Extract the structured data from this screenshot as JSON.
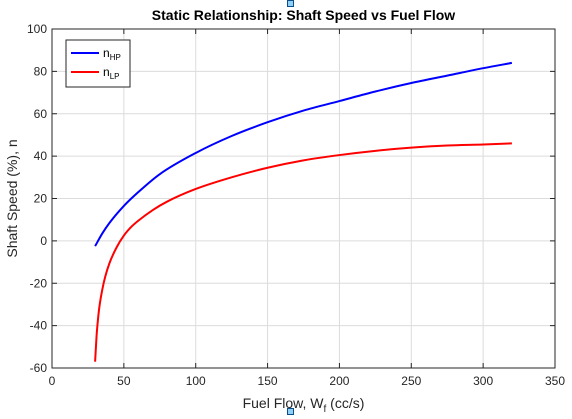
{
  "chart_data": {
    "type": "line",
    "title": "Static Relationship: Shaft Speed vs Fuel Flow",
    "xlabel": "Fuel Flow, W",
    "xlabel_subscript": "f",
    "xlabel_suffix": " (cc/s)",
    "ylabel": "Shaft Speed (%), n",
    "xlim": [
      0,
      350
    ],
    "ylim": [
      -60,
      100
    ],
    "xticks": [
      0,
      50,
      100,
      150,
      200,
      250,
      300,
      350
    ],
    "yticks": [
      -60,
      -40,
      -20,
      0,
      20,
      40,
      60,
      80,
      100
    ],
    "grid": true,
    "legend_location": "top-left",
    "series": [
      {
        "name": "n",
        "name_subscript": "HP",
        "color": "#0000ff",
        "x": [
          30,
          35,
          40,
          50,
          60,
          75,
          100,
          125,
          150,
          175,
          200,
          225,
          250,
          275,
          300,
          320
        ],
        "y": [
          -2.5,
          3.5,
          8.5,
          16.5,
          23,
          31.5,
          41.5,
          49.5,
          56,
          61.5,
          66,
          70.5,
          74.5,
          78,
          81.5,
          84
        ]
      },
      {
        "name": "n",
        "name_subscript": "LP",
        "color": "#ff0000",
        "x": [
          30,
          31,
          32,
          33,
          35,
          37,
          40,
          45,
          50,
          55,
          60,
          70,
          80,
          100,
          125,
          150,
          175,
          200,
          225,
          250,
          275,
          300,
          320
        ],
        "y": [
          -57,
          -45,
          -37,
          -31,
          -23,
          -17,
          -10.5,
          -3,
          2.5,
          6.5,
          9.5,
          14.5,
          18.5,
          24.5,
          30,
          34.5,
          38,
          40.5,
          42.5,
          44,
          45,
          45.5,
          46
        ]
      }
    ]
  }
}
